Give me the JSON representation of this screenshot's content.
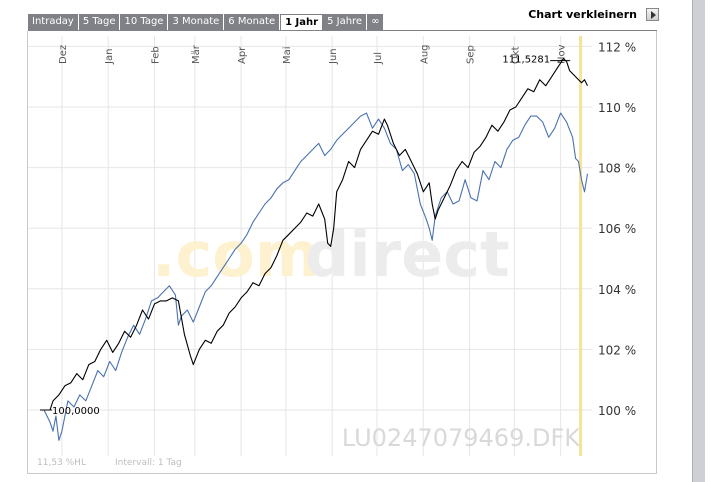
{
  "tabs": [
    {
      "label": "Intraday",
      "active": false
    },
    {
      "label": "5 Tage",
      "active": false
    },
    {
      "label": "10 Tage",
      "active": false
    },
    {
      "label": "3 Monate",
      "active": false
    },
    {
      "label": "6 Monate",
      "active": false
    },
    {
      "label": "1 Jahr",
      "active": true
    },
    {
      "label": "5 Jahre",
      "active": false
    },
    {
      "label": "∞",
      "active": false
    }
  ],
  "shrink_label": "Chart verkleinern",
  "watermark": {
    "part1": ".com",
    "part2": "direct"
  },
  "isin": "LU0247079469.DFK",
  "info": {
    "change": "11,53 %HL",
    "interval": "Intervall: 1 Tag"
  },
  "colors": {
    "series_main": "#000000",
    "series_compare": "#4a72b0",
    "current_marker": "#f6e39a",
    "grid": "#e6e6e6"
  },
  "chart_data": {
    "type": "line",
    "x_range": [
      0,
      365
    ],
    "ylim": [
      98.4,
      112.2
    ],
    "y_ticks": [
      {
        "value": 100,
        "label": "100 %"
      },
      {
        "value": 102,
        "label": "102 %"
      },
      {
        "value": 104,
        "label": "104 %"
      },
      {
        "value": 106,
        "label": "106 %"
      },
      {
        "value": 108,
        "label": "108 %"
      },
      {
        "value": 110,
        "label": "110 %"
      },
      {
        "value": 112,
        "label": "112 %"
      }
    ],
    "x_ticks": [
      {
        "x": 12,
        "label": "Dez"
      },
      {
        "x": 43,
        "label": "Jan"
      },
      {
        "x": 74,
        "label": "Feb"
      },
      {
        "x": 101,
        "label": "Mär"
      },
      {
        "x": 132,
        "label": "Apr"
      },
      {
        "x": 162,
        "label": "Mai"
      },
      {
        "x": 193,
        "label": "Jun"
      },
      {
        "x": 223,
        "label": "Jul"
      },
      {
        "x": 254,
        "label": "Aug"
      },
      {
        "x": 285,
        "label": "Sep"
      },
      {
        "x": 315,
        "label": "Okt"
      },
      {
        "x": 346,
        "label": "Nov"
      }
    ],
    "value_labels": [
      {
        "text": "100,0000",
        "x": 0,
        "y": 100.0
      },
      {
        "text": "111,5281",
        "x": 343,
        "y": 111.53
      }
    ],
    "current_x": 359,
    "series": [
      {
        "key": "main",
        "points": [
          [
            0,
            100.0
          ],
          [
            4,
            100.0
          ],
          [
            6,
            100.3
          ],
          [
            10,
            100.5
          ],
          [
            14,
            100.8
          ],
          [
            18,
            100.9
          ],
          [
            22,
            101.2
          ],
          [
            26,
            101.0
          ],
          [
            30,
            101.5
          ],
          [
            34,
            101.6
          ],
          [
            38,
            102.0
          ],
          [
            42,
            102.3
          ],
          [
            46,
            101.9
          ],
          [
            50,
            102.2
          ],
          [
            54,
            102.6
          ],
          [
            58,
            102.4
          ],
          [
            62,
            102.8
          ],
          [
            66,
            103.3
          ],
          [
            70,
            103.0
          ],
          [
            74,
            103.5
          ],
          [
            78,
            103.6
          ],
          [
            82,
            103.6
          ],
          [
            86,
            103.7
          ],
          [
            90,
            103.6
          ],
          [
            94,
            102.5
          ],
          [
            98,
            101.8
          ],
          [
            100,
            101.5
          ],
          [
            104,
            102.0
          ],
          [
            108,
            102.3
          ],
          [
            112,
            102.2
          ],
          [
            116,
            102.6
          ],
          [
            120,
            102.8
          ],
          [
            124,
            103.2
          ],
          [
            128,
            103.4
          ],
          [
            132,
            103.7
          ],
          [
            136,
            103.9
          ],
          [
            140,
            104.2
          ],
          [
            144,
            104.1
          ],
          [
            148,
            104.5
          ],
          [
            152,
            104.7
          ],
          [
            156,
            105.1
          ],
          [
            160,
            105.6
          ],
          [
            164,
            105.8
          ],
          [
            168,
            106.0
          ],
          [
            172,
            106.2
          ],
          [
            176,
            106.5
          ],
          [
            180,
            106.4
          ],
          [
            184,
            106.8
          ],
          [
            188,
            106.3
          ],
          [
            190,
            105.5
          ],
          [
            192,
            105.4
          ],
          [
            194,
            106.0
          ],
          [
            196,
            107.2
          ],
          [
            200,
            107.6
          ],
          [
            204,
            108.2
          ],
          [
            208,
            108.0
          ],
          [
            212,
            108.6
          ],
          [
            216,
            108.9
          ],
          [
            220,
            109.2
          ],
          [
            224,
            109.1
          ],
          [
            228,
            109.6
          ],
          [
            230,
            109.4
          ],
          [
            234,
            108.8
          ],
          [
            238,
            108.4
          ],
          [
            242,
            108.6
          ],
          [
            246,
            108.2
          ],
          [
            250,
            107.8
          ],
          [
            254,
            107.2
          ],
          [
            258,
            107.5
          ],
          [
            260,
            106.8
          ],
          [
            262,
            106.3
          ],
          [
            264,
            106.6
          ],
          [
            268,
            107.0
          ],
          [
            272,
            107.4
          ],
          [
            276,
            107.9
          ],
          [
            280,
            108.2
          ],
          [
            284,
            108.0
          ],
          [
            288,
            108.5
          ],
          [
            292,
            108.7
          ],
          [
            296,
            109.0
          ],
          [
            300,
            109.4
          ],
          [
            304,
            109.2
          ],
          [
            308,
            109.5
          ],
          [
            312,
            109.9
          ],
          [
            316,
            110.0
          ],
          [
            320,
            110.3
          ],
          [
            324,
            110.6
          ],
          [
            328,
            110.5
          ],
          [
            332,
            110.9
          ],
          [
            336,
            110.7
          ],
          [
            340,
            111.0
          ],
          [
            344,
            111.3
          ],
          [
            348,
            111.6
          ],
          [
            350,
            111.5
          ],
          [
            352,
            111.2
          ],
          [
            356,
            111.0
          ],
          [
            360,
            110.8
          ],
          [
            362,
            110.9
          ],
          [
            364,
            110.7
          ]
        ]
      },
      {
        "key": "compare",
        "points": [
          [
            0,
            100.0
          ],
          [
            4,
            99.6
          ],
          [
            6,
            99.3
          ],
          [
            8,
            99.8
          ],
          [
            10,
            99.0
          ],
          [
            12,
            99.3
          ],
          [
            16,
            100.3
          ],
          [
            20,
            100.1
          ],
          [
            24,
            100.5
          ],
          [
            28,
            100.3
          ],
          [
            32,
            100.8
          ],
          [
            36,
            101.3
          ],
          [
            40,
            101.1
          ],
          [
            44,
            101.6
          ],
          [
            48,
            101.3
          ],
          [
            52,
            101.9
          ],
          [
            56,
            102.4
          ],
          [
            60,
            102.8
          ],
          [
            64,
            102.5
          ],
          [
            68,
            103.0
          ],
          [
            72,
            103.6
          ],
          [
            76,
            103.7
          ],
          [
            80,
            103.9
          ],
          [
            84,
            104.1
          ],
          [
            88,
            103.8
          ],
          [
            90,
            102.8
          ],
          [
            92,
            103.1
          ],
          [
            96,
            103.3
          ],
          [
            100,
            102.9
          ],
          [
            104,
            103.4
          ],
          [
            108,
            103.9
          ],
          [
            112,
            104.1
          ],
          [
            116,
            104.4
          ],
          [
            120,
            104.7
          ],
          [
            124,
            105.0
          ],
          [
            128,
            105.3
          ],
          [
            132,
            105.5
          ],
          [
            136,
            105.8
          ],
          [
            140,
            106.2
          ],
          [
            144,
            106.5
          ],
          [
            148,
            106.8
          ],
          [
            152,
            107.0
          ],
          [
            156,
            107.3
          ],
          [
            160,
            107.5
          ],
          [
            164,
            107.6
          ],
          [
            168,
            107.9
          ],
          [
            172,
            108.2
          ],
          [
            176,
            108.4
          ],
          [
            180,
            108.6
          ],
          [
            184,
            108.8
          ],
          [
            188,
            108.4
          ],
          [
            192,
            108.6
          ],
          [
            196,
            108.9
          ],
          [
            200,
            109.1
          ],
          [
            204,
            109.3
          ],
          [
            208,
            109.5
          ],
          [
            212,
            109.7
          ],
          [
            216,
            109.8
          ],
          [
            220,
            109.3
          ],
          [
            224,
            109.6
          ],
          [
            228,
            109.3
          ],
          [
            232,
            108.8
          ],
          [
            236,
            108.6
          ],
          [
            240,
            107.9
          ],
          [
            244,
            108.1
          ],
          [
            248,
            107.8
          ],
          [
            252,
            106.8
          ],
          [
            256,
            106.3
          ],
          [
            258,
            106.0
          ],
          [
            260,
            105.6
          ],
          [
            262,
            106.4
          ],
          [
            266,
            107.0
          ],
          [
            270,
            107.2
          ],
          [
            274,
            106.8
          ],
          [
            278,
            106.9
          ],
          [
            282,
            107.6
          ],
          [
            286,
            107.0
          ],
          [
            290,
            106.9
          ],
          [
            294,
            107.9
          ],
          [
            298,
            107.6
          ],
          [
            302,
            108.2
          ],
          [
            306,
            108.0
          ],
          [
            310,
            108.6
          ],
          [
            314,
            108.9
          ],
          [
            318,
            109.0
          ],
          [
            322,
            109.4
          ],
          [
            326,
            109.7
          ],
          [
            330,
            109.7
          ],
          [
            334,
            109.5
          ],
          [
            338,
            109.0
          ],
          [
            342,
            109.3
          ],
          [
            346,
            109.8
          ],
          [
            350,
            109.5
          ],
          [
            354,
            109.0
          ],
          [
            356,
            108.3
          ],
          [
            358,
            108.2
          ],
          [
            360,
            107.6
          ],
          [
            362,
            107.2
          ],
          [
            364,
            107.8
          ]
        ]
      }
    ]
  }
}
